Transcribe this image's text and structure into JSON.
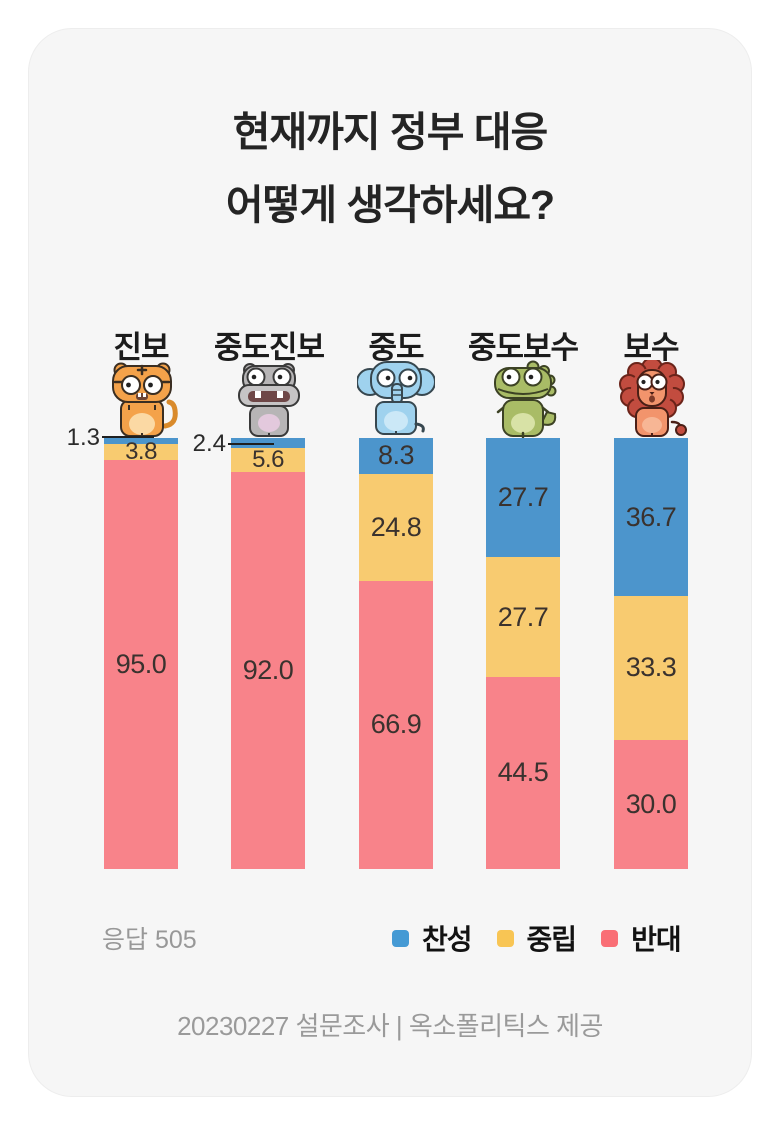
{
  "card": {
    "title_line1": "현재까지 정부 대응",
    "title_line2": "어떻게 생각하세요?",
    "respondents_label": "응답 505",
    "footer": "20230227 설문조사 | 옥소폴리틱스 제공"
  },
  "legend": [
    {
      "label": "찬성",
      "color": "#459ad4",
      "icon": "blue-square-swatch"
    },
    {
      "label": "중립",
      "color": "#f8c554",
      "icon": "yellow-square-swatch"
    },
    {
      "label": "반대",
      "color": "#f96e75",
      "icon": "red-square-swatch"
    }
  ],
  "chart_data": {
    "type": "bar",
    "stacked": true,
    "orientation": "vertical",
    "title": "현재까지 정부 대응 어떻게 생각하세요?",
    "value_unit": "%",
    "ylim": [
      0,
      100
    ],
    "grid": false,
    "legend_position": "bottom-right",
    "categories": [
      "진보",
      "중도진보",
      "중도",
      "중도보수",
      "보수"
    ],
    "mascots": [
      "tiger-icon",
      "hippo-icon",
      "elephant-icon",
      "dino-icon",
      "lion-icon"
    ],
    "series": [
      {
        "name": "찬성",
        "color": "#4c95cc",
        "values": [
          1.3,
          2.4,
          8.3,
          27.7,
          36.7
        ],
        "labels": [
          "1.3",
          "2.4",
          "8.3",
          "27.7",
          "36.7"
        ]
      },
      {
        "name": "중립",
        "color": "#f8cb70",
        "values": [
          3.8,
          5.6,
          24.8,
          27.7,
          33.3
        ],
        "labels": [
          "3.8",
          "5.6",
          "24.8",
          "27.7",
          "33.3"
        ]
      },
      {
        "name": "반대",
        "color": "#f8838a",
        "values": [
          95.0,
          92.0,
          66.9,
          44.5,
          30.0
        ],
        "labels": [
          "95.0",
          "92.0",
          "66.9",
          "44.5",
          "30.0"
        ]
      }
    ],
    "callouts": [
      {
        "category": "진보",
        "series": "찬성",
        "label": "1.3"
      },
      {
        "category": "중도진보",
        "series": "찬성",
        "label": "2.4"
      }
    ]
  }
}
